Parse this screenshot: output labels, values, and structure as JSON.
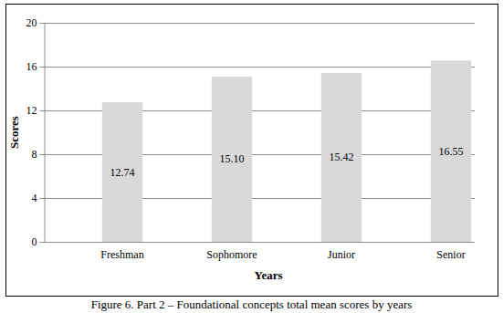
{
  "chart_data": {
    "type": "bar",
    "title": "Figure 6. Part 2 – Foundational concepts total mean scores by years",
    "x_label": "Years",
    "y_label": "Scores",
    "categories": [
      "Freshman",
      "Sophomore",
      "Junior",
      "Senior"
    ],
    "values": [
      12.74,
      15.1,
      15.42,
      16.55
    ],
    "value_labels": [
      "12.74",
      "15.10",
      "15.42",
      "16.55"
    ],
    "color": "#d9d9d9",
    "ylim": [
      0,
      20
    ],
    "yticks": [
      0,
      4,
      8,
      12,
      16,
      20
    ],
    "grid": true,
    "data_labels": true
  }
}
